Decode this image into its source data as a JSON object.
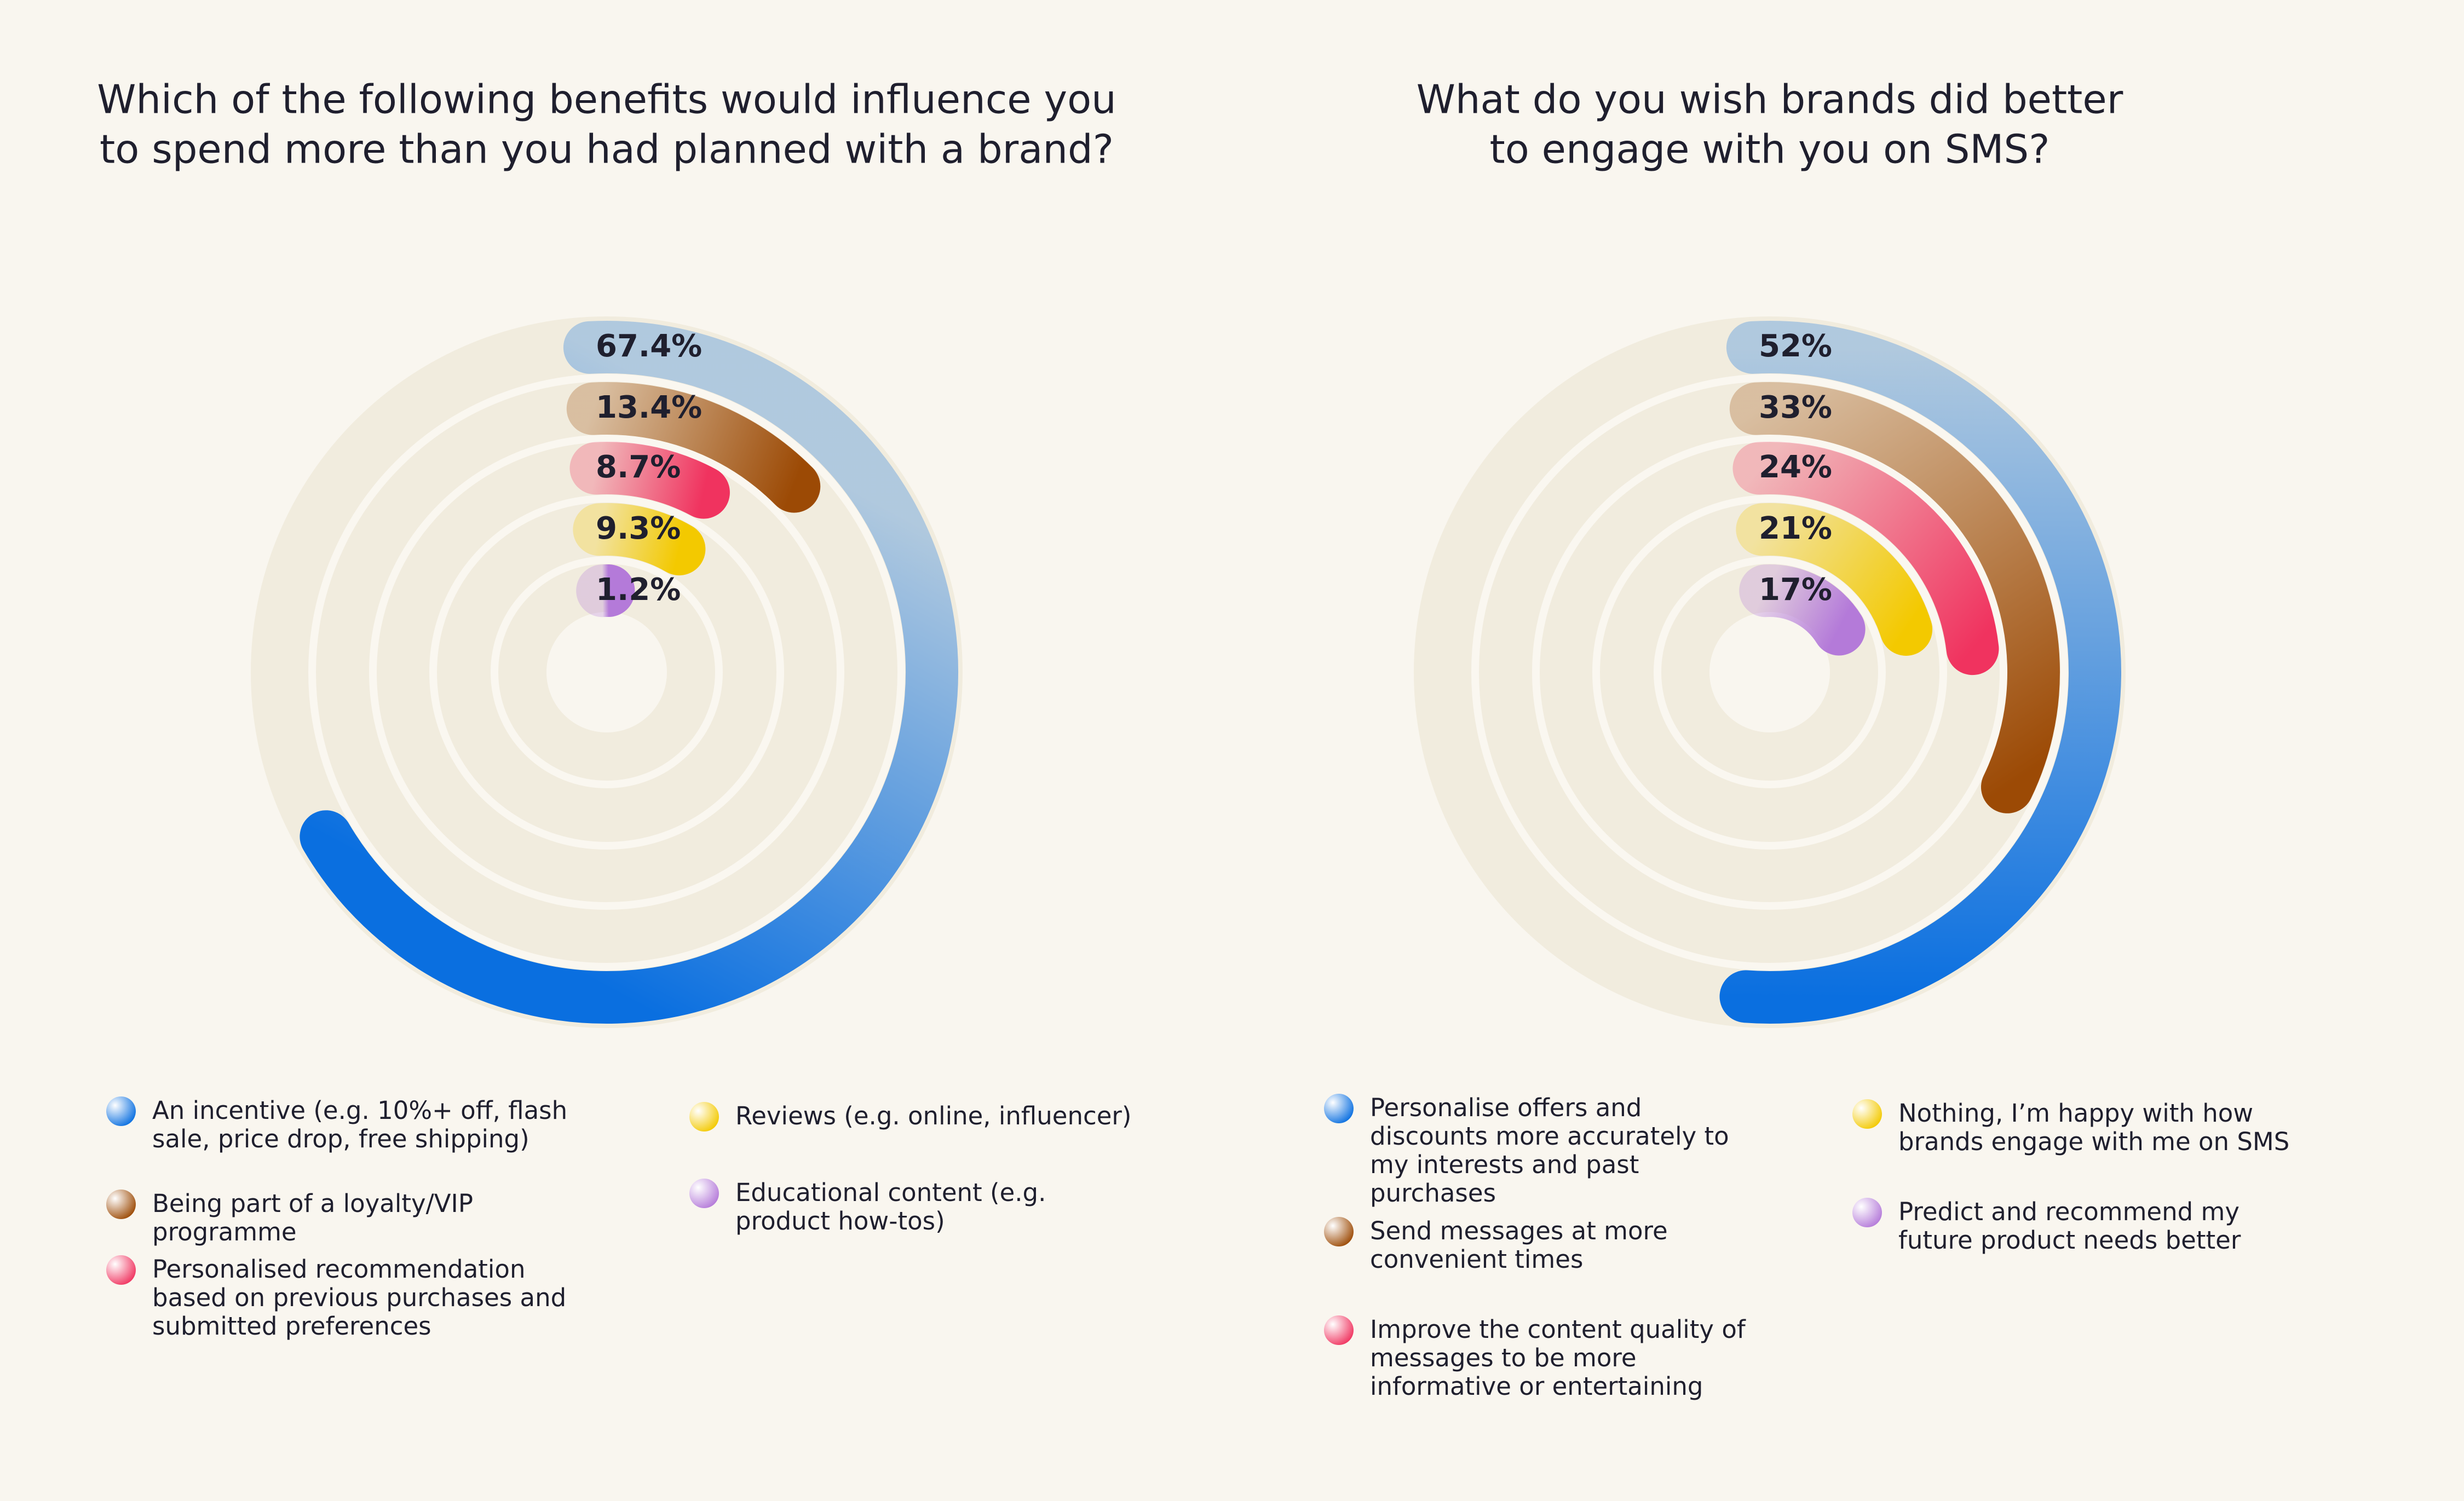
{
  "chart_data": [
    {
      "type": "radial_bar",
      "title": [
        "Which of the following benefits would influence you",
        "to spend more than you had planned with a brand?"
      ],
      "categories": [
        "An incentive (e.g. 10%+ off, flash sale, price drop, free shipping)",
        "Being part of a loyalty/VIP programme",
        "Personalised recommendation based on previous purchases and submitted preferences",
        "Reviews (e.g. online, influencer)",
        "Educational content (e.g. product how-tos)"
      ],
      "values": [
        67.4,
        13.4,
        8.7,
        9.3,
        1.2
      ],
      "value_labels": [
        "67.4%",
        "13.4%",
        "8.7%",
        "9.3%",
        "1.2%"
      ],
      "colors": [
        "#0a6fe0",
        "#9c4a05",
        "#f0335f",
        "#f3c900",
        "#b47ad9"
      ],
      "ylim": [
        0,
        100
      ]
    },
    {
      "type": "radial_bar",
      "title": [
        "What do you wish brands did better",
        "to engage with you on SMS?"
      ],
      "categories": [
        "Personalise offers and discounts more accurately to my interests and past purchases",
        "Send messages at more convenient times",
        "Improve the content quality of messages to be more informative or entertaining",
        "Nothing, I’m happy with how brands engage with me on SMS",
        "Predict and recommend my future product needs better"
      ],
      "values": [
        52,
        33,
        24,
        21,
        17
      ],
      "value_labels": [
        "52%",
        "33%",
        "24%",
        "21%",
        "17%"
      ],
      "colors": [
        "#0a6fe0",
        "#9c4a05",
        "#f0335f",
        "#f3c900",
        "#b47ad9"
      ],
      "ylim": [
        0,
        100
      ]
    }
  ]
}
